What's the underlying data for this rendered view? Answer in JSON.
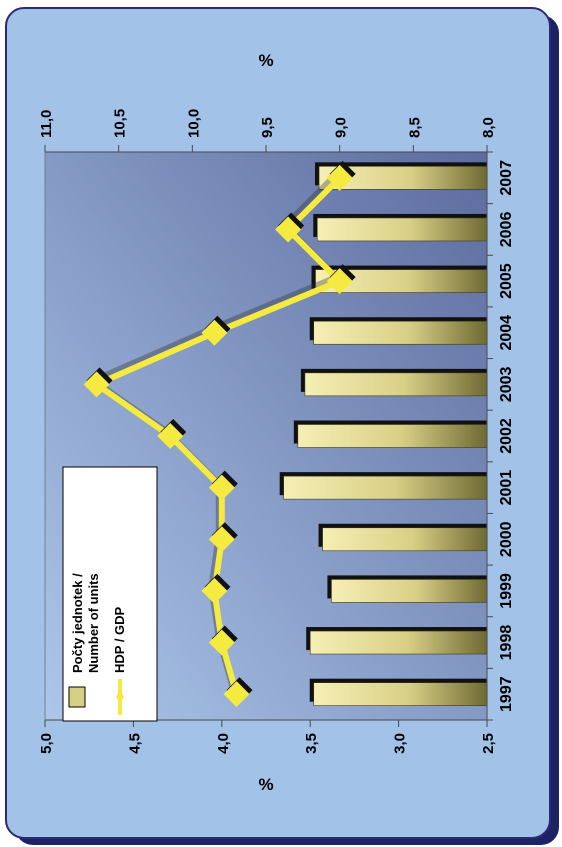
{
  "chart_data": {
    "type": "bar",
    "orientation": "rotated-90-ccw",
    "categories": [
      "1997",
      "1998",
      "1999",
      "2000",
      "2001",
      "2002",
      "2003",
      "2004",
      "2005",
      "2006",
      "2007"
    ],
    "series": [
      {
        "name": "Počty jednotek / Number of units",
        "type": "bar",
        "axis": "left",
        "values": [
          3.48,
          3.5,
          3.38,
          3.43,
          3.65,
          3.57,
          3.53,
          3.48,
          3.47,
          3.46,
          3.45
        ]
      },
      {
        "name": "HDP / GDP",
        "type": "line",
        "axis": "right",
        "values": [
          9.7,
          9.8,
          9.85,
          9.8,
          9.8,
          10.15,
          10.65,
          9.85,
          9.0,
          9.35,
          9.0
        ]
      }
    ],
    "left_axis": {
      "label": "%",
      "range": [
        2.5,
        5.0
      ],
      "ticks": [
        "2,5",
        "3,0",
        "3,5",
        "4,0",
        "4,5",
        "5,0"
      ]
    },
    "right_axis": {
      "label": "%",
      "range": [
        8.0,
        11.0
      ],
      "ticks": [
        "8,0",
        "8,5",
        "9,0",
        "9,5",
        "10,0",
        "10,5",
        "11,0"
      ]
    },
    "legend": {
      "placement": "top-left",
      "items": [
        {
          "line1": "Počty jednotek /",
          "line2": "Number of units"
        },
        {
          "line1": "HDP / GDP"
        }
      ]
    },
    "grid": false,
    "colors": {
      "bar": "#dcd490",
      "line": "#f4ea40",
      "outer_background": "#a3c2e8",
      "plot_gradient_start": "#a9c4e8",
      "plot_gradient_end": "#5f6fa0",
      "frame": "#2a2a7a"
    }
  }
}
